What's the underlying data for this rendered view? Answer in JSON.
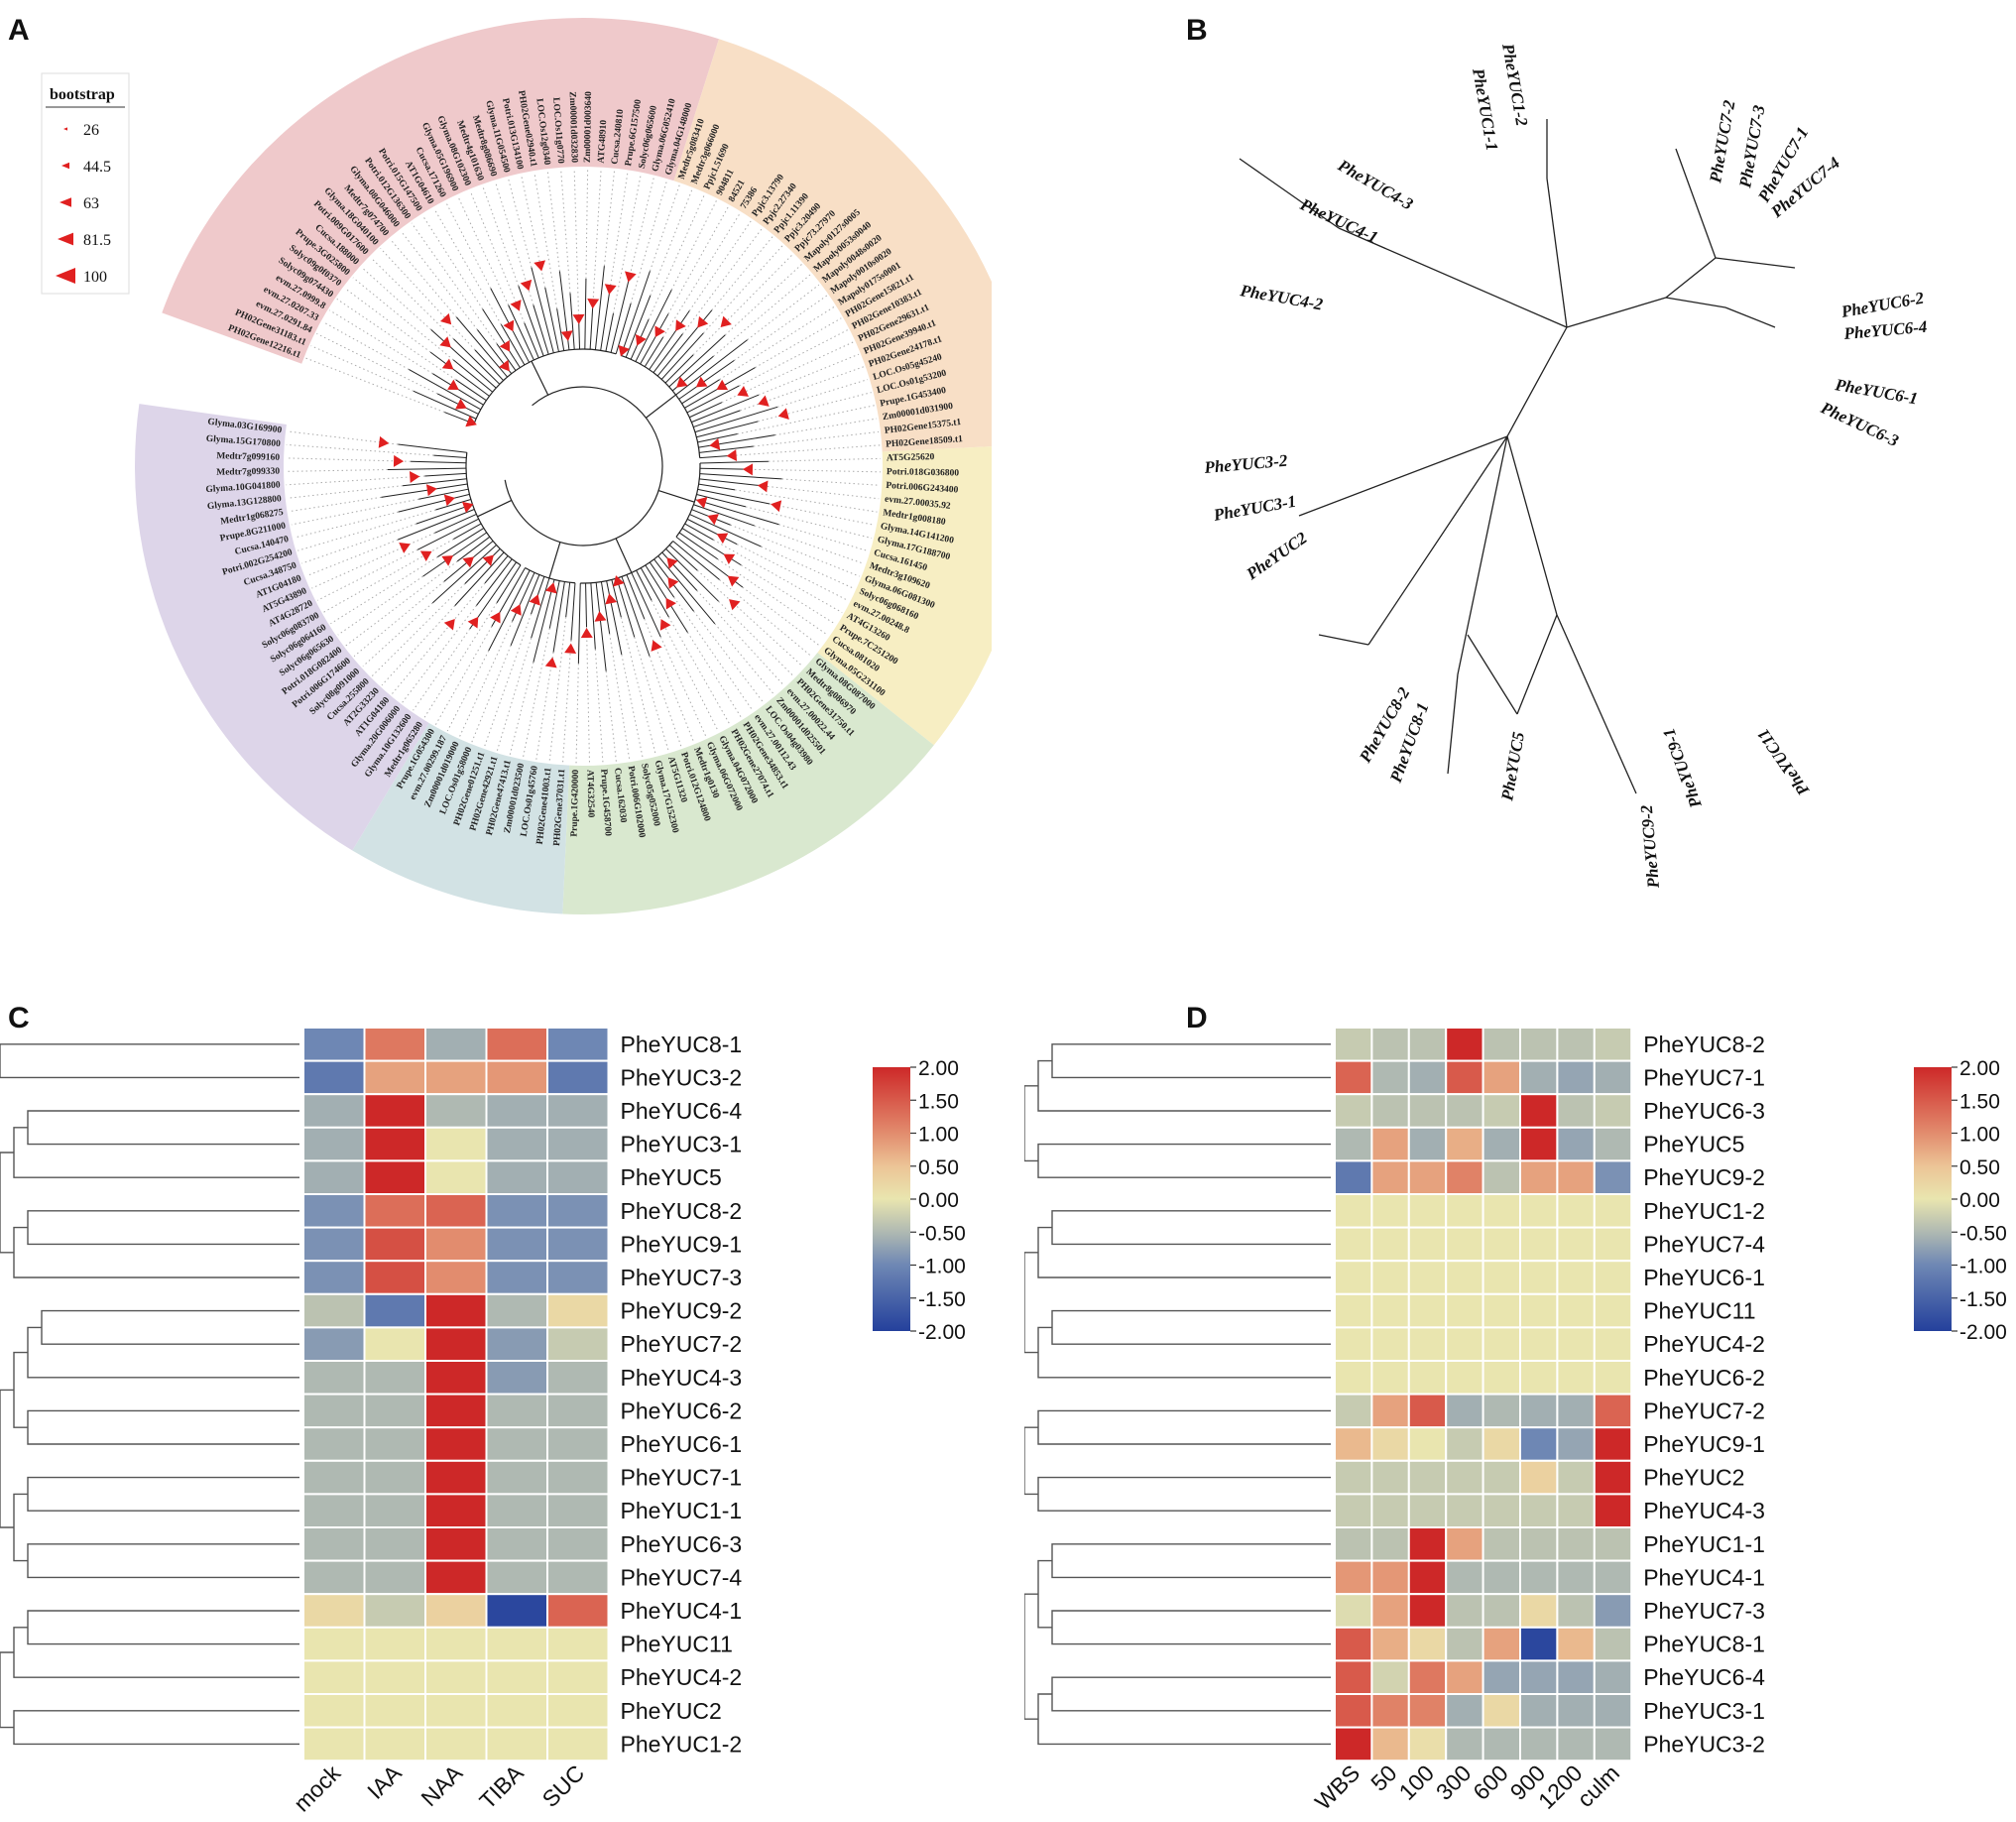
{
  "panels": {
    "A": "A",
    "B": "B",
    "C": "C",
    "D": "D"
  },
  "panelA": {
    "legend_title": "bootstrap",
    "legend_values": [
      "26",
      "44.5",
      "63",
      "81.5",
      "100"
    ],
    "clades": [
      {
        "color": "#efc9cb",
        "genes": [
          "PH02Gene12216.t1",
          "PH02Gene31183.t1",
          "evm.27.0291.84",
          "evm.27.0207.33",
          "evm.27.0999.8",
          "Solyc09g074430",
          "Solyc09g0f0370",
          "Prupe.3G025800",
          "Cucsa.188000",
          "Potri.009G017600",
          "Glyma.18G040100",
          "Medtr7g074700",
          "Glyma.08G046000",
          "Potri.012G136300",
          "Potri.015G147500",
          "AT1G04610",
          "Cucsa.171260",
          "Glyma.05G196900",
          "Glyma.08G102300",
          "Medtr4g101630",
          "Medtr8g086690",
          "Glyma.11G054500",
          "Potri.013G134100",
          "PH02Gene02940.t1",
          "LOC.Os12g0340",
          "LOC.Os11g0770",
          "Zm00001d032830",
          "Zm00001d003640",
          "ATG48910",
          "Cucsa.240810",
          "Prupe.6G157500",
          "Solyc06g065600",
          "Glyma.06G052410",
          "Glyma.04G148000"
        ]
      },
      {
        "color": "#f8dfc6",
        "genes": [
          "Medtr5g083410",
          "Medtr3g066000",
          "Ppjc1.51690",
          "904811",
          "84521",
          "75386",
          "Ppjc3.13790",
          "Ppjc2.27340",
          "Ppjc1.11390",
          "Ppjc3.20490",
          "Ppjc73.27970",
          "Mapoly0127s0005",
          "Mapoly0053s0040",
          "Mapoly0048s0020",
          "Mapoly0010s0020",
          "Mapoly0175s0001",
          "PH02Gene15821.t1",
          "PH02Gene10383.t1",
          "PH02Gene29631.t1",
          "PH02Gene39940.t1",
          "PH02Gene24178.t1",
          "LOC.Os05g45240",
          "LOC.Os01g53200",
          "Prupe.1G453400",
          "Zm00001d031900",
          "PH02Gene15375.t1",
          "PH02Gene18509.t1"
        ]
      },
      {
        "color": "#f7eec3",
        "genes": [
          "AT5G25620",
          "Potri.018G036800",
          "Potri.006G243400",
          "evm.27.00035.92",
          "Medtr1g008180",
          "Glyma.14G141200",
          "Glyma.17G188700",
          "Cucsa.161450",
          "Medtr3g109620",
          "Glyma.06G081300",
          "Solyc06g068160",
          "evm.27.00248.8",
          "AT4G13260",
          "Prupe.7C251200",
          "Cucsa.081020",
          "Glyma.05G231100"
        ]
      },
      {
        "color": "#d9e8cf",
        "genes": [
          "Glyma.08G087000",
          "Medtr8g086970",
          "PH02Gene31750.t1",
          "evm.27.00022.44",
          "Zm00001d025501",
          "LOC.Os04g03980",
          "evm.27.00112.43",
          "PH02Gene34853.t1",
          "PH02Gene27074.t1",
          "Glyma.04G072000",
          "Glyma.06G072000",
          "Medtr1g0130",
          "Potri.012G124800",
          "AT5G11320",
          "Glyma.17G152300",
          "Solyc05g052000",
          "Potri.006G102000",
          "Cucsa.162030",
          "Prupe.1G458700",
          "AT4G32540",
          "Prupe.1G420000"
        ]
      },
      {
        "color": "#d2e2e4",
        "genes": [
          "PH02Gene37031.t1",
          "PH02Gene41003.t1",
          "LOC.Os01g45760",
          "Zm00001d023500",
          "PH02Gene47413.t1",
          "PH02Gene42921.t1",
          "PH02Gene01251.t1",
          "LOC.Os01g58000",
          "Zm00001d019000",
          "evm.27.00299.187",
          "Prupe.1G054300"
        ]
      },
      {
        "color": "#ddd5e9",
        "genes": [
          "Medtr1g065280",
          "Glyma.10G132600",
          "Glyma.20G006000",
          "AT1G04180",
          "AT2G33230",
          "Cucsa.255800",
          "Solyc08g091000",
          "Potri.006G174600",
          "Potri.018G082400",
          "Solyc06g065630",
          "Solyc06g064160",
          "Solyc06g083700",
          "AT4G28720",
          "AT5G43890",
          "AT1G04180",
          "Cucsa.348750",
          "Potri.002G254200",
          "Cucsa.140470",
          "Prupe.8G211000",
          "Medtr1g068275",
          "Glyma.13G128800",
          "Glyma.10G041800",
          "Medtr7g099330",
          "Medtr7g099160",
          "Glyma.15G170800",
          "Glyma.03G169900"
        ]
      }
    ]
  },
  "panelB": {
    "leaves": [
      "PheYUC1-2",
      "PheYUC1-1",
      "PheYUC7-2",
      "PheYUC7-3",
      "PheYUC7-1",
      "PheYUC7-4",
      "PheYUC4-3",
      "PheYUC4-1",
      "PheYUC4-2",
      "PheYUC6-2",
      "PheYUC6-4",
      "PheYUC6-1",
      "PheYUC6-3",
      "PheYUC3-2",
      "PheYUC3-1",
      "PheYUC2",
      "PheYUC8-2",
      "PheYUC8-1",
      "PheYUC5",
      "PheYUC9-2",
      "PheYUC9-1",
      "PheYUC11"
    ]
  },
  "panelC": {
    "columns": [
      "mock",
      "IAA",
      "NAA",
      "TIBA",
      "SUC"
    ],
    "rows": [
      "PheYUC8-1",
      "PheYUC3-2",
      "PheYUC6-4",
      "PheYUC3-1",
      "PheYUC5",
      "PheYUC8-2",
      "PheYUC9-1",
      "PheYUC7-3",
      "PheYUC9-2",
      "PheYUC7-2",
      "PheYUC4-3",
      "PheYUC6-2",
      "PheYUC6-1",
      "PheYUC7-1",
      "PheYUC1-1",
      "PheYUC6-3",
      "PheYUC7-4",
      "PheYUC4-1",
      "PheYUC11",
      "PheYUC4-2",
      "PheYUC2",
      "PheYUC1-2"
    ],
    "values": [
      [
        -1.0,
        1.2,
        -0.6,
        1.3,
        -1.0
      ],
      [
        -1.2,
        0.8,
        0.8,
        0.9,
        -1.2
      ],
      [
        -0.6,
        2.0,
        -0.5,
        -0.6,
        -0.6
      ],
      [
        -0.6,
        2.0,
        0.0,
        -0.6,
        -0.6
      ],
      [
        -0.6,
        2.0,
        0.0,
        -0.6,
        -0.6
      ],
      [
        -0.9,
        1.3,
        1.4,
        -0.9,
        -0.9
      ],
      [
        -0.9,
        1.6,
        1.0,
        -0.9,
        -0.9
      ],
      [
        -0.9,
        1.6,
        1.0,
        -0.9,
        -0.9
      ],
      [
        -0.4,
        -1.2,
        2.0,
        -0.5,
        0.2
      ],
      [
        -0.8,
        0.0,
        2.0,
        -0.8,
        -0.3
      ],
      [
        -0.5,
        -0.5,
        2.0,
        -0.8,
        -0.5
      ],
      [
        -0.5,
        -0.5,
        2.0,
        -0.5,
        -0.5
      ],
      [
        -0.5,
        -0.5,
        2.0,
        -0.5,
        -0.5
      ],
      [
        -0.5,
        -0.5,
        2.0,
        -0.5,
        -0.5
      ],
      [
        -0.5,
        -0.5,
        2.0,
        -0.5,
        -0.5
      ],
      [
        -0.5,
        -0.5,
        2.0,
        -0.5,
        -0.5
      ],
      [
        -0.5,
        -0.5,
        2.0,
        -0.5,
        -0.5
      ],
      [
        0.2,
        -0.3,
        0.3,
        -1.9,
        1.4
      ],
      [
        0.0,
        0.0,
        0.0,
        0.0,
        0.0
      ],
      [
        0.0,
        0.0,
        0.0,
        0.0,
        0.0
      ],
      [
        0.0,
        0.0,
        0.0,
        0.0,
        0.0
      ],
      [
        0.0,
        0.0,
        0.0,
        0.0,
        0.0
      ]
    ],
    "scale_ticks": [
      "2.00",
      "1.50",
      "1.00",
      "0.50",
      "0.00",
      "-0.50",
      "-1.00",
      "-1.50",
      "-2.00"
    ]
  },
  "panelD": {
    "columns": [
      "WBS",
      "50",
      "100",
      "300",
      "600",
      "900",
      "1200",
      "culm"
    ],
    "rows": [
      "PheYUC8-2",
      "PheYUC7-1",
      "PheYUC6-3",
      "PheYUC5",
      "PheYUC9-2",
      "PheYUC1-2",
      "PheYUC7-4",
      "PheYUC6-1",
      "PheYUC11",
      "PheYUC4-2",
      "PheYUC6-2",
      "PheYUC7-2",
      "PheYUC9-1",
      "PheYUC2",
      "PheYUC4-3",
      "PheYUC1-1",
      "PheYUC4-1",
      "PheYUC7-3",
      "PheYUC8-1",
      "PheYUC6-4",
      "PheYUC3-1",
      "PheYUC3-2"
    ],
    "values": [
      [
        -0.3,
        -0.4,
        -0.4,
        2.0,
        -0.4,
        -0.4,
        -0.4,
        -0.3
      ],
      [
        1.4,
        -0.5,
        -0.6,
        1.5,
        0.8,
        -0.6,
        -0.7,
        -0.6
      ],
      [
        -0.3,
        -0.4,
        -0.4,
        -0.4,
        -0.3,
        2.0,
        -0.4,
        -0.3
      ],
      [
        -0.5,
        0.8,
        -0.6,
        0.7,
        -0.6,
        2.0,
        -0.7,
        -0.5
      ],
      [
        -1.2,
        0.8,
        0.8,
        1.1,
        -0.4,
        0.8,
        0.8,
        -0.9
      ],
      [
        0.0,
        0.0,
        0.0,
        0.0,
        0.0,
        0.0,
        0.0,
        0.0
      ],
      [
        0.0,
        0.0,
        0.0,
        0.0,
        0.0,
        0.0,
        0.0,
        0.0
      ],
      [
        0.0,
        0.0,
        0.0,
        0.0,
        0.0,
        0.0,
        0.0,
        0.0
      ],
      [
        0.0,
        0.0,
        0.0,
        0.0,
        0.0,
        0.0,
        0.0,
        0.0
      ],
      [
        0.0,
        0.0,
        0.0,
        0.0,
        0.0,
        0.0,
        0.0,
        0.0
      ],
      [
        0.0,
        0.0,
        0.0,
        0.0,
        0.0,
        0.0,
        0.0,
        0.0
      ],
      [
        -0.3,
        0.8,
        1.5,
        -0.6,
        -0.5,
        -0.6,
        -0.6,
        1.4
      ],
      [
        0.6,
        0.2,
        0.0,
        -0.3,
        0.2,
        -1.0,
        -0.7,
        2.0
      ],
      [
        -0.3,
        -0.3,
        -0.3,
        -0.3,
        -0.3,
        0.3,
        -0.3,
        2.0
      ],
      [
        -0.3,
        -0.3,
        -0.3,
        -0.3,
        -0.3,
        -0.3,
        -0.3,
        2.0
      ],
      [
        -0.4,
        -0.4,
        2.0,
        0.8,
        -0.4,
        -0.4,
        -0.4,
        -0.4
      ],
      [
        0.9,
        0.9,
        2.0,
        -0.5,
        -0.5,
        -0.5,
        -0.5,
        -0.5
      ],
      [
        -0.1,
        0.8,
        2.0,
        -0.4,
        -0.4,
        0.2,
        -0.4,
        -0.8
      ],
      [
        1.5,
        0.7,
        0.2,
        -0.4,
        0.8,
        -1.9,
        0.6,
        -0.4
      ],
      [
        1.5,
        -0.2,
        1.2,
        0.8,
        -0.7,
        -0.7,
        -0.7,
        -0.6
      ],
      [
        1.5,
        1.1,
        1.1,
        -0.6,
        0.2,
        -0.6,
        -0.6,
        -0.6
      ],
      [
        2.0,
        0.6,
        0.1,
        -0.5,
        -0.5,
        -0.5,
        -0.5,
        -0.5
      ]
    ],
    "scale_ticks": [
      "2.00",
      "1.50",
      "1.00",
      "0.50",
      "0.00",
      "-0.50",
      "-1.00",
      "-1.50",
      "-2.00"
    ]
  }
}
